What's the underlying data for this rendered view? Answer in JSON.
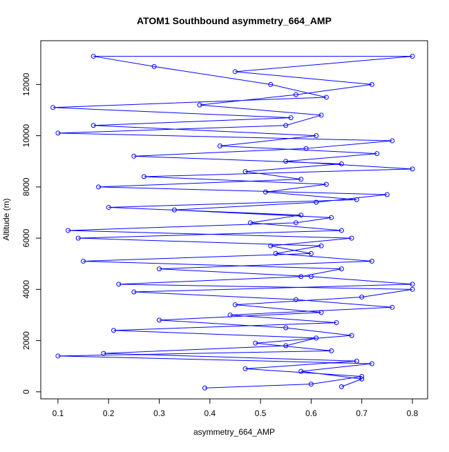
{
  "chart_data": {
    "type": "line-points",
    "title": "ATOM1 Southbound asymmetry_664_AMP",
    "xlabel": "asymmetry_664_AMP",
    "ylabel": "Altitude (m)",
    "xlim": [
      0.066,
      0.83
    ],
    "ylim": [
      -275,
      13708
    ],
    "xticks": [
      0.1,
      0.2,
      0.3,
      0.4,
      0.5,
      0.6,
      0.7,
      0.8
    ],
    "yticks": [
      0,
      2000,
      4000,
      6000,
      8000,
      10000,
      12000
    ],
    "series": [
      {
        "color": "#0000ff",
        "x": [
          0.66,
          0.7,
          0.58,
          0.72,
          0.1,
          0.64,
          0.49,
          0.68,
          0.55,
          0.3,
          0.62,
          0.45,
          0.7,
          0.8,
          0.22,
          0.58,
          0.66,
          0.15,
          0.6,
          0.52,
          0.68,
          0.12,
          0.57,
          0.64,
          0.33,
          0.61,
          0.75,
          0.18,
          0.58,
          0.47,
          0.66,
          0.25,
          0.59,
          0.76,
          0.1,
          0.55,
          0.62,
          0.38,
          0.57,
          0.72,
          0.45,
          0.8,
          0.17,
          0.29,
          0.52,
          0.63,
          0.09,
          0.56,
          0.17,
          0.61,
          0.42,
          0.73,
          0.55,
          0.8,
          0.27,
          0.63,
          0.51,
          0.69,
          0.2,
          0.58,
          0.48,
          0.66,
          0.14,
          0.62,
          0.53,
          0.72,
          0.3,
          0.6,
          0.8,
          0.25,
          0.57,
          0.76,
          0.44,
          0.65,
          0.21,
          0.61,
          0.55,
          0.19,
          0.69,
          0.47,
          0.7,
          0.6,
          0.39
        ],
        "values": [
          200,
          500,
          800,
          1100,
          1400,
          1600,
          1900,
          2200,
          2500,
          2800,
          3100,
          3400,
          3700,
          4000,
          4200,
          4500,
          4800,
          5100,
          5400,
          5700,
          6000,
          6300,
          6600,
          6800,
          7100,
          7400,
          7700,
          8000,
          8300,
          8600,
          8900,
          9200,
          9500,
          9800,
          10100,
          10400,
          10800,
          11200,
          11600,
          12000,
          12500,
          13100,
          13100,
          12700,
          12000,
          11500,
          11100,
          10700,
          10400,
          10000,
          9600,
          9300,
          9000,
          8700,
          8400,
          8100,
          7800,
          7500,
          7200,
          6900,
          6600,
          6300,
          6000,
          5700,
          5400,
          5100,
          4800,
          4500,
          4200,
          3900,
          3600,
          3300,
          3000,
          2700,
          2400,
          2100,
          1800,
          1500,
          1200,
          900,
          600,
          300,
          150
        ]
      }
    ]
  }
}
